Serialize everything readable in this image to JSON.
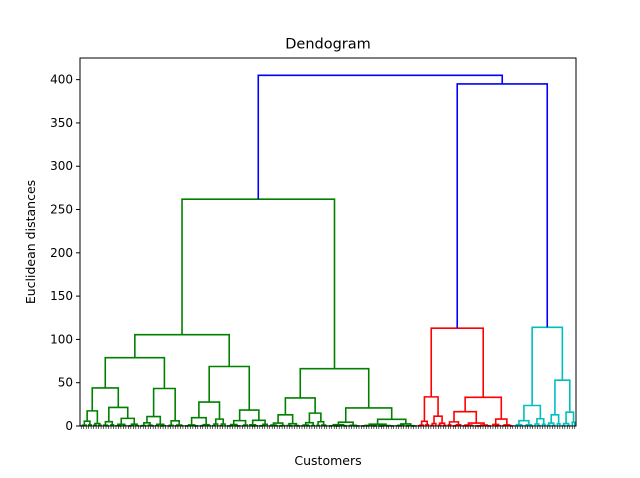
{
  "chart_data": {
    "type": "dendrogram",
    "title": "Dendogram",
    "xlabel": "Customers",
    "ylabel": "Euclidean distances",
    "ylim": [
      0,
      425
    ],
    "yticks": [
      0,
      50,
      100,
      150,
      200,
      250,
      300,
      350,
      400
    ],
    "leaf_count": 200,
    "colors": {
      "green": "#008000",
      "red": "#ff0000",
      "cyan": "#00bfbf",
      "blue": "#0000ff"
    },
    "clusters": [
      {
        "color": "green",
        "leaves": 136,
        "height": 262
      },
      {
        "color": "red",
        "leaves": 39,
        "height": 113
      },
      {
        "color": "cyan",
        "leaves": 25,
        "height": 114
      }
    ],
    "top_merges": [
      {
        "heights": [
          113,
          114
        ],
        "merge_height": 395,
        "color": "blue"
      },
      {
        "heights": [
          262,
          395
        ],
        "merge_height": 405,
        "color": "blue"
      }
    ]
  }
}
